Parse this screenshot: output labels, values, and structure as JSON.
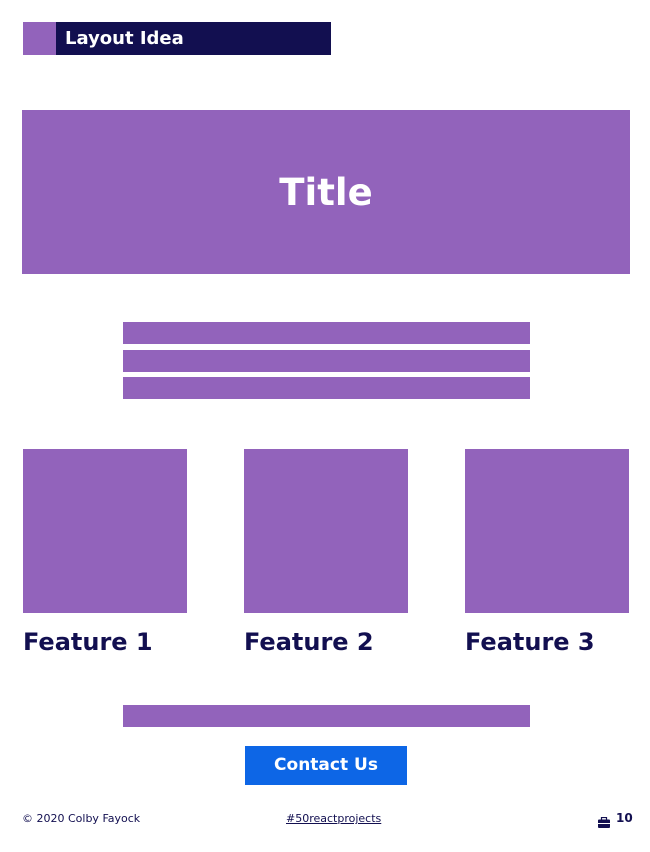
{
  "header": {
    "title": "Layout Idea"
  },
  "hero": {
    "title": "Title"
  },
  "features": [
    {
      "label": "Feature 1"
    },
    {
      "label": "Feature 2"
    },
    {
      "label": "Feature 3"
    }
  ],
  "cta": {
    "label": "Contact Us"
  },
  "footer": {
    "copyright": "© 2020 Colby Fayock",
    "hashtag": "#50reactprojects",
    "page_number": "10",
    "icon": "briefcase-icon"
  },
  "colors": {
    "accent_purple": "#9263bb",
    "navy": "#120f50",
    "button_blue": "#0d66e6"
  }
}
